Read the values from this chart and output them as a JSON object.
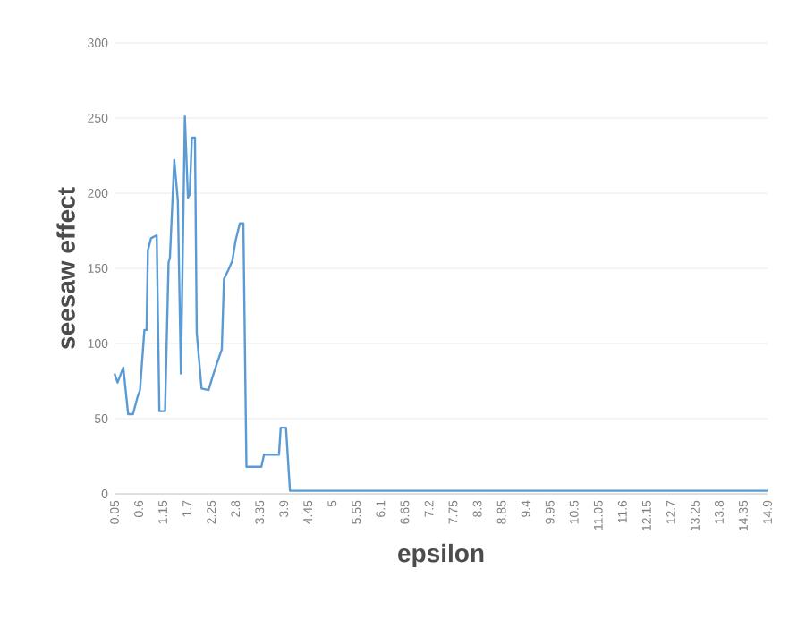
{
  "chart_data": {
    "type": "line",
    "xlabel": "epsilon",
    "ylabel": "seesaw effect",
    "x": [
      0.05,
      0.12,
      0.25,
      0.36,
      0.47,
      0.57,
      0.63,
      0.73,
      0.78,
      0.81,
      0.88,
      1.01,
      1.07,
      1.2,
      1.28,
      1.31,
      1.41,
      1.49,
      1.56,
      1.65,
      1.72,
      1.76,
      1.81,
      1.88,
      1.92,
      2.03,
      2.19,
      2.26,
      2.37,
      2.49,
      2.54,
      2.64,
      2.73,
      2.8,
      2.9,
      2.98,
      3.05,
      3.39,
      3.45,
      3.79,
      3.83,
      3.95,
      4.04,
      14.9
    ],
    "series": [
      {
        "color": "#5b9bd5",
        "values": [
          80,
          74,
          84,
          53,
          53,
          64,
          69,
          109,
          109,
          162,
          170,
          172,
          55,
          55,
          154,
          157,
          222,
          195,
          80,
          251,
          197,
          199,
          237,
          237,
          107,
          70,
          69,
          76,
          86,
          96,
          143,
          149,
          155,
          168,
          180,
          180,
          18,
          18,
          26,
          26,
          44,
          44,
          2,
          2
        ]
      }
    ],
    "xlim": [
      0.05,
      14.9
    ],
    "xticks": [
      0.05,
      0.6,
      1.15,
      1.7,
      2.25,
      2.8,
      3.35,
      3.9,
      4.45,
      5,
      5.55,
      6.1,
      6.65,
      7.2,
      7.75,
      8.3,
      8.85,
      9.4,
      9.95,
      10.5,
      11.05,
      11.6,
      12.15,
      12.7,
      13.25,
      13.8,
      14.35,
      14.9
    ],
    "ylim": [
      0,
      300
    ],
    "yticks": [
      0,
      50,
      100,
      150,
      200,
      250,
      300
    ],
    "grid": "y",
    "marker": "none",
    "line_style": "solid"
  }
}
